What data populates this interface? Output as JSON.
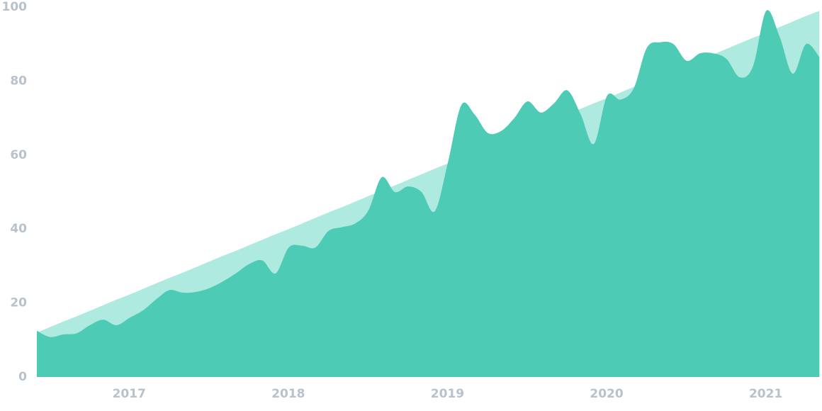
{
  "chart_data": {
    "type": "area",
    "x": [
      2016.42,
      2016.503,
      2016.587,
      2016.67,
      2016.753,
      2016.837,
      2016.92,
      2017.003,
      2017.087,
      2017.17,
      2017.253,
      2017.337,
      2017.42,
      2017.503,
      2017.587,
      2017.67,
      2017.753,
      2017.837,
      2017.92,
      2018.003,
      2018.087,
      2018.17,
      2018.253,
      2018.337,
      2018.42,
      2018.503,
      2018.587,
      2018.67,
      2018.753,
      2018.837,
      2018.92,
      2019.003,
      2019.087,
      2019.17,
      2019.253,
      2019.337,
      2019.42,
      2019.503,
      2019.587,
      2019.67,
      2019.753,
      2019.837,
      2019.92,
      2020.003,
      2020.087,
      2020.17,
      2020.253,
      2020.337,
      2020.42,
      2020.503,
      2020.587,
      2020.67,
      2020.753,
      2020.837,
      2020.92,
      2021.003,
      2021.087,
      2021.17,
      2021.253,
      2021.337
    ],
    "series": [
      {
        "color": "#aeeadf",
        "values": [
          12,
          13.5,
          15,
          16.4,
          17.9,
          19.4,
          20.9,
          22.3,
          23.8,
          25.3,
          26.8,
          28.2,
          29.7,
          31.2,
          32.7,
          34.1,
          35.6,
          37.1,
          38.6,
          40,
          41.5,
          43,
          44.5,
          45.9,
          47.4,
          48.9,
          50.4,
          51.8,
          53.3,
          54.8,
          56.3,
          57.7,
          59.2,
          60.7,
          62.2,
          63.6,
          65.1,
          66.6,
          68.1,
          69.5,
          71,
          72.5,
          74,
          75.4,
          76.9,
          78.4,
          79.9,
          81.3,
          82.8,
          84.3,
          85.8,
          87.2,
          88.7,
          90.2,
          91.7,
          93.1,
          94.6,
          96.1,
          97.6,
          99
        ]
      },
      {
        "color": "#4ecbb4",
        "values": [
          12.5,
          10.8,
          11.5,
          11.8,
          14,
          15.5,
          14,
          16,
          18,
          21,
          23.5,
          22.8,
          23,
          24,
          25.8,
          28,
          30.5,
          31.5,
          28,
          35,
          35.5,
          35,
          39.5,
          40.5,
          41.5,
          45,
          54,
          50,
          51.5,
          50,
          44.8,
          58,
          73.5,
          71,
          66,
          66.5,
          70,
          74.5,
          71.5,
          74,
          77.5,
          71,
          63,
          76,
          75,
          78,
          89,
          90.5,
          90,
          85.5,
          87.5,
          87.5,
          86,
          81,
          84,
          99,
          92,
          82,
          90,
          86.5
        ]
      }
    ],
    "xlim": [
      2016.42,
      2021.34
    ],
    "xticks": [
      2017,
      2018,
      2019,
      2020,
      2021
    ],
    "ylim": [
      0,
      100
    ],
    "yticks": [
      0,
      20,
      40,
      60,
      80,
      100
    ]
  }
}
